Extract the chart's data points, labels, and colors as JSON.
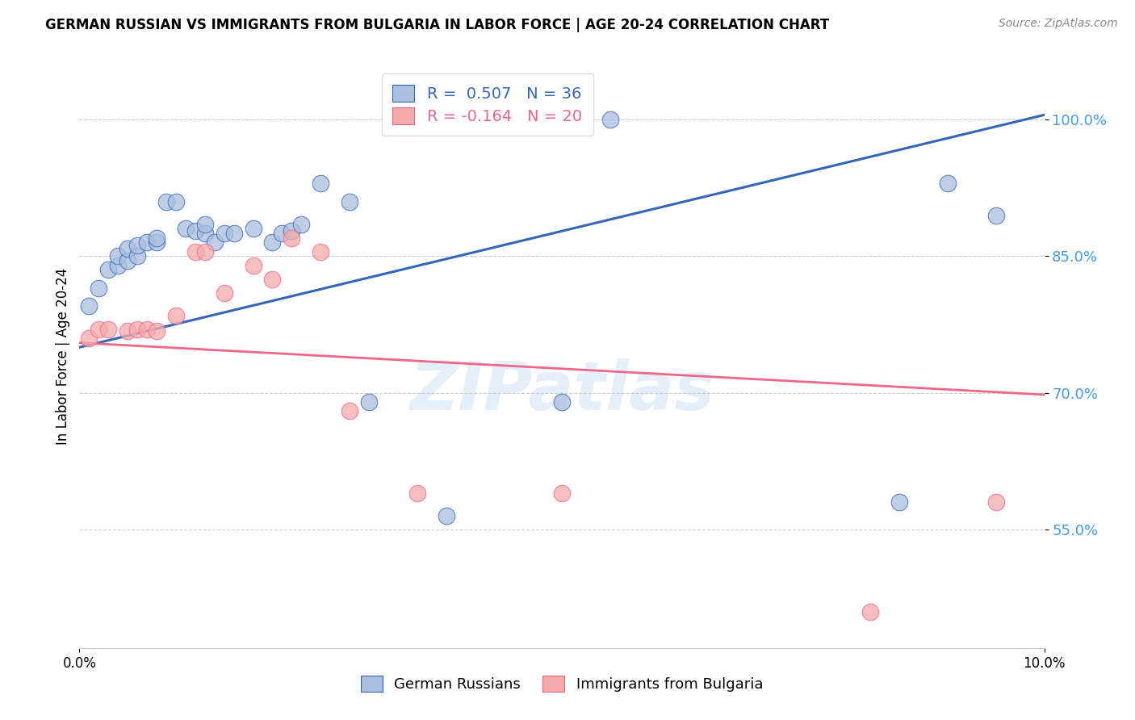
{
  "title": "GERMAN RUSSIAN VS IMMIGRANTS FROM BULGARIA IN LABOR FORCE | AGE 20-24 CORRELATION CHART",
  "source": "Source: ZipAtlas.com",
  "ylabel": "In Labor Force | Age 20-24",
  "xlim": [
    0.0,
    0.1
  ],
  "ylim": [
    0.42,
    1.06
  ],
  "ytick_labels": [
    "55.0%",
    "70.0%",
    "85.0%",
    "100.0%"
  ],
  "ytick_values": [
    0.55,
    0.7,
    0.85,
    1.0
  ],
  "xtick_values": [
    0.0,
    0.1
  ],
  "xtick_labels": [
    "0.0%",
    "10.0%"
  ],
  "blue_R": 0.507,
  "blue_N": 36,
  "pink_R": -0.164,
  "pink_N": 20,
  "blue_color": "#AABEDD",
  "pink_color": "#F4AAAA",
  "blue_line_color": "#3366BB",
  "pink_line_color": "#EE6688",
  "legend_label_blue": "German Russians",
  "legend_label_pink": "Immigrants from Bulgaria",
  "blue_line_x0": 0.0,
  "blue_line_y0": 0.75,
  "blue_line_x1": 0.1,
  "blue_line_y1": 1.005,
  "pink_line_x0": 0.0,
  "pink_line_y0": 0.755,
  "pink_line_x1": 0.1,
  "pink_line_y1": 0.698,
  "blue_x": [
    0.001,
    0.002,
    0.003,
    0.004,
    0.004,
    0.005,
    0.005,
    0.006,
    0.006,
    0.007,
    0.008,
    0.008,
    0.009,
    0.01,
    0.011,
    0.012,
    0.013,
    0.013,
    0.014,
    0.015,
    0.016,
    0.018,
    0.02,
    0.021,
    0.022,
    0.023,
    0.025,
    0.028,
    0.03,
    0.035,
    0.038,
    0.05,
    0.055,
    0.085,
    0.09,
    0.095
  ],
  "blue_y": [
    0.795,
    0.815,
    0.835,
    0.84,
    0.85,
    0.845,
    0.858,
    0.85,
    0.862,
    0.865,
    0.865,
    0.87,
    0.91,
    0.91,
    0.88,
    0.878,
    0.875,
    0.885,
    0.865,
    0.875,
    0.875,
    0.88,
    0.865,
    0.875,
    0.878,
    0.885,
    0.93,
    0.91,
    0.69,
    1.0,
    0.565,
    0.69,
    1.0,
    0.58,
    0.93,
    0.895
  ],
  "pink_x": [
    0.001,
    0.002,
    0.003,
    0.005,
    0.006,
    0.007,
    0.008,
    0.01,
    0.012,
    0.013,
    0.015,
    0.018,
    0.02,
    0.022,
    0.025,
    0.028,
    0.035,
    0.05,
    0.082,
    0.095
  ],
  "pink_y": [
    0.76,
    0.77,
    0.77,
    0.768,
    0.77,
    0.77,
    0.768,
    0.785,
    0.855,
    0.855,
    0.81,
    0.84,
    0.825,
    0.87,
    0.855,
    0.68,
    0.59,
    0.59,
    0.46,
    0.58
  ],
  "watermark": "ZIPatlas",
  "background_color": "#FFFFFF",
  "grid_color": "#CCCCCC"
}
